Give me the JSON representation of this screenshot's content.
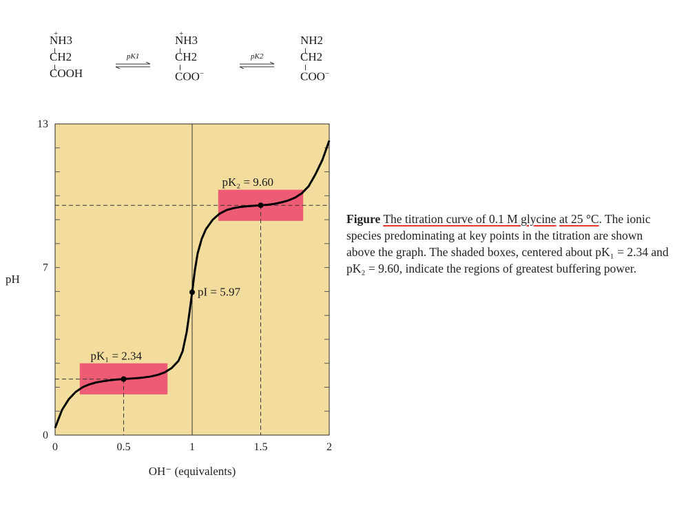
{
  "species": [
    {
      "top": "NH3",
      "mid": "CH2",
      "bottom": "COOH",
      "charge_top": "+",
      "charge_bottom": ""
    },
    {
      "top": "NH3",
      "mid": "CH2",
      "bottom": "COO",
      "charge_top": "+",
      "charge_bottom": "−"
    },
    {
      "top": "NH2",
      "mid": "CH2",
      "bottom": "COO",
      "charge_top": "",
      "charge_bottom": "−"
    }
  ],
  "equilibria": [
    "pK1",
    "pK2"
  ],
  "chart_data": {
    "type": "line",
    "xlabel": "OH⁻ (equivalents)",
    "ylabel": "pH",
    "xlim": [
      0,
      2
    ],
    "ylim": [
      0,
      13
    ],
    "x_ticks": [
      "0",
      "0.5",
      "1",
      "1.5",
      "2"
    ],
    "y_ticks": [
      "0",
      "7",
      "13"
    ],
    "series": [
      {
        "x": [
          0,
          0.02,
          0.05,
          0.1,
          0.15,
          0.2,
          0.25,
          0.3,
          0.35,
          0.4,
          0.45,
          0.5,
          0.55,
          0.6,
          0.65,
          0.7,
          0.75,
          0.8,
          0.85,
          0.9,
          0.93,
          0.96,
          0.98,
          1.0,
          1.02,
          1.04,
          1.07,
          1.1,
          1.15,
          1.2,
          1.25,
          1.3,
          1.35,
          1.4,
          1.45,
          1.5,
          1.55,
          1.6,
          1.65,
          1.7,
          1.75,
          1.8,
          1.85,
          1.9,
          1.95,
          2.0
        ],
        "y": [
          0.3,
          0.6,
          1.05,
          1.5,
          1.8,
          2.0,
          2.12,
          2.2,
          2.25,
          2.29,
          2.32,
          2.34,
          2.36,
          2.38,
          2.41,
          2.45,
          2.52,
          2.62,
          2.8,
          3.1,
          3.5,
          4.3,
          5.1,
          5.97,
          6.9,
          7.6,
          8.2,
          8.6,
          9.0,
          9.25,
          9.4,
          9.48,
          9.53,
          9.56,
          9.58,
          9.6,
          9.62,
          9.66,
          9.72,
          9.8,
          9.92,
          10.1,
          10.4,
          10.9,
          11.5,
          12.3
        ]
      }
    ],
    "points": [
      {
        "x": 0.5,
        "y": 2.34,
        "label": "pK₁ = 2.34"
      },
      {
        "x": 1.0,
        "y": 5.97,
        "label": "pI = 5.97"
      },
      {
        "x": 1.5,
        "y": 9.6,
        "label": "pK₂ = 9.60"
      }
    ],
    "buffer_boxes": [
      {
        "x_range": [
          0.18,
          0.82
        ],
        "y_range": [
          1.7,
          3.0
        ]
      },
      {
        "x_range": [
          1.19,
          1.81
        ],
        "y_range": [
          8.95,
          10.25
        ]
      }
    ],
    "colors": {
      "background": "#f3dd9e",
      "box": "#ee4f72",
      "curve": "#000000"
    }
  },
  "caption": {
    "lead": "Figure",
    "underlined_1": "The titration curve of 0.1 M glycine",
    "underlined_2": "at 25 °C",
    "rest": ". The ionic species predominating at key points in the titration are shown above the graph. The shaded boxes, centered about pK₁ = 2.34 and pK₂ = 9.60, indicate the regions of greatest buffering power."
  }
}
